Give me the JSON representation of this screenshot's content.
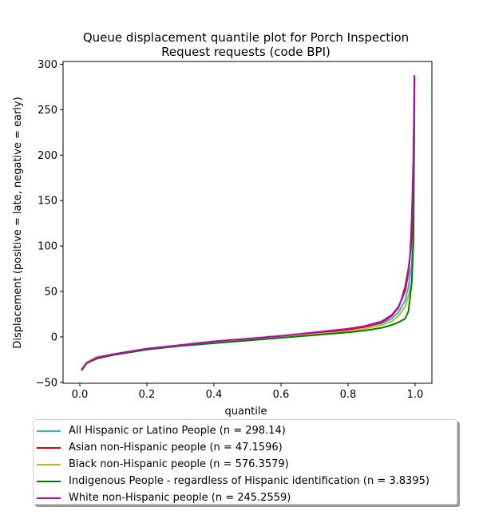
{
  "chart_data": {
    "type": "line",
    "title_line1": "Queue displacement quantile plot for Porch Inspection",
    "title_line2": "Request  requests (code BPI)",
    "xlabel": "quantile",
    "ylabel": "Displacement (positive = late, negative = early)",
    "xlim": [
      -0.05,
      1.05
    ],
    "ylim": [
      -51,
      303
    ],
    "xticks": [
      0.0,
      0.2,
      0.4,
      0.6,
      0.8,
      1.0
    ],
    "xtick_labels": [
      "0.0",
      "0.2",
      "0.4",
      "0.6",
      "0.8",
      "1.0"
    ],
    "yticks": [
      -50,
      0,
      50,
      100,
      150,
      200,
      250,
      300
    ],
    "ytick_labels": [
      "−50",
      "0",
      "50",
      "100",
      "150",
      "200",
      "250",
      "300"
    ],
    "grid": false,
    "legend_position": "below",
    "series": [
      {
        "name": "All Hispanic or Latino People (n = 298.14)",
        "color": "#17becf",
        "x": [
          0.005,
          0.02,
          0.05,
          0.1,
          0.2,
          0.3,
          0.4,
          0.5,
          0.6,
          0.7,
          0.8,
          0.85,
          0.9,
          0.93,
          0.95,
          0.97,
          0.98,
          0.99,
          0.995,
          0.998
        ],
        "y": [
          -37,
          -29,
          -23,
          -19,
          -13,
          -9,
          -5,
          -2,
          1,
          4,
          8,
          11,
          15,
          20,
          27,
          40,
          55,
          80,
          130,
          270
        ]
      },
      {
        "name": "Asian non-Hispanic people (n = 47.1596)",
        "color": "#e00000",
        "x": [
          0.005,
          0.02,
          0.05,
          0.1,
          0.2,
          0.3,
          0.4,
          0.5,
          0.6,
          0.7,
          0.8,
          0.85,
          0.9,
          0.93,
          0.95,
          0.96,
          0.97,
          0.98,
          0.985,
          0.99,
          0.995,
          0.998
        ],
        "y": [
          -36,
          -29,
          -23,
          -19,
          -13,
          -9,
          -5,
          -2,
          1,
          4,
          8,
          11,
          16,
          23,
          32,
          42,
          55,
          75,
          90,
          110,
          190,
          285
        ]
      },
      {
        "name": "Black non-Hispanic people (n = 576.3579)",
        "color": "#bcbd22",
        "x": [
          0.005,
          0.02,
          0.05,
          0.1,
          0.2,
          0.3,
          0.4,
          0.5,
          0.6,
          0.7,
          0.8,
          0.85,
          0.9,
          0.93,
          0.95,
          0.97,
          0.98,
          0.99,
          0.995,
          0.998
        ],
        "y": [
          -36,
          -28,
          -22,
          -19,
          -13,
          -9,
          -6,
          -3,
          0,
          3,
          6,
          9,
          13,
          17,
          23,
          33,
          45,
          60,
          100,
          240
        ]
      },
      {
        "name": "Indigenous People - regardless of Hispanic identification (n = 3.8395)",
        "color": "#008000",
        "x": [
          0.005,
          0.02,
          0.05,
          0.1,
          0.2,
          0.3,
          0.4,
          0.5,
          0.6,
          0.7,
          0.8,
          0.85,
          0.9,
          0.93,
          0.95,
          0.97,
          0.98,
          0.99,
          0.995,
          0.998
        ],
        "y": [
          -36,
          -29,
          -24,
          -20,
          -14,
          -10,
          -7,
          -4,
          -1,
          2,
          5,
          7,
          10,
          13,
          16,
          20,
          28,
          60,
          110,
          285
        ]
      },
      {
        "name": "White non-Hispanic people (n = 245.2559)",
        "color": "#c000c0",
        "x": [
          0.005,
          0.02,
          0.05,
          0.1,
          0.2,
          0.3,
          0.4,
          0.5,
          0.6,
          0.7,
          0.8,
          0.85,
          0.9,
          0.93,
          0.95,
          0.97,
          0.98,
          0.985,
          0.99,
          0.995,
          0.998
        ],
        "y": [
          -37,
          -29,
          -23,
          -19,
          -13,
          -9,
          -5,
          -2,
          1,
          5,
          9,
          12,
          17,
          24,
          33,
          50,
          70,
          90,
          130,
          200,
          288
        ]
      }
    ]
  }
}
